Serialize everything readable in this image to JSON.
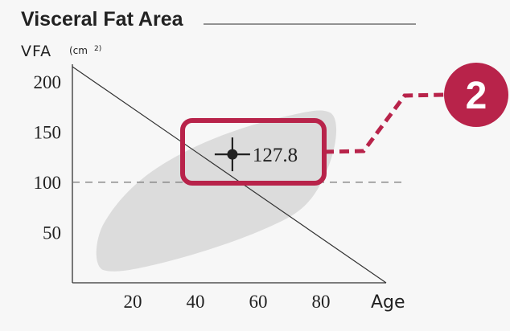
{
  "chart_data": {
    "type": "scatter",
    "title": "Visceral Fat Area",
    "ylabel": "VFA",
    "ylabel_unit": "(cm",
    "ylabel_unit_sup": "2)",
    "xlabel": "Age",
    "xlim": [
      0,
      100
    ],
    "ylim": [
      0,
      215
    ],
    "xticks": [
      20,
      40,
      60,
      80
    ],
    "yticks": [
      50,
      100,
      150,
      200
    ],
    "reference_line": {
      "y": 100,
      "style": "dashed"
    },
    "diagonal_line": {
      "from": [
        0,
        215
      ],
      "to": [
        100,
        0
      ]
    },
    "normal_range_region": true,
    "point": {
      "x": 51,
      "y": 127.8,
      "label": "127.8"
    },
    "highlight_color": "#b8234a",
    "region_color": "#dcdcdc"
  },
  "callout": {
    "number": "2"
  }
}
